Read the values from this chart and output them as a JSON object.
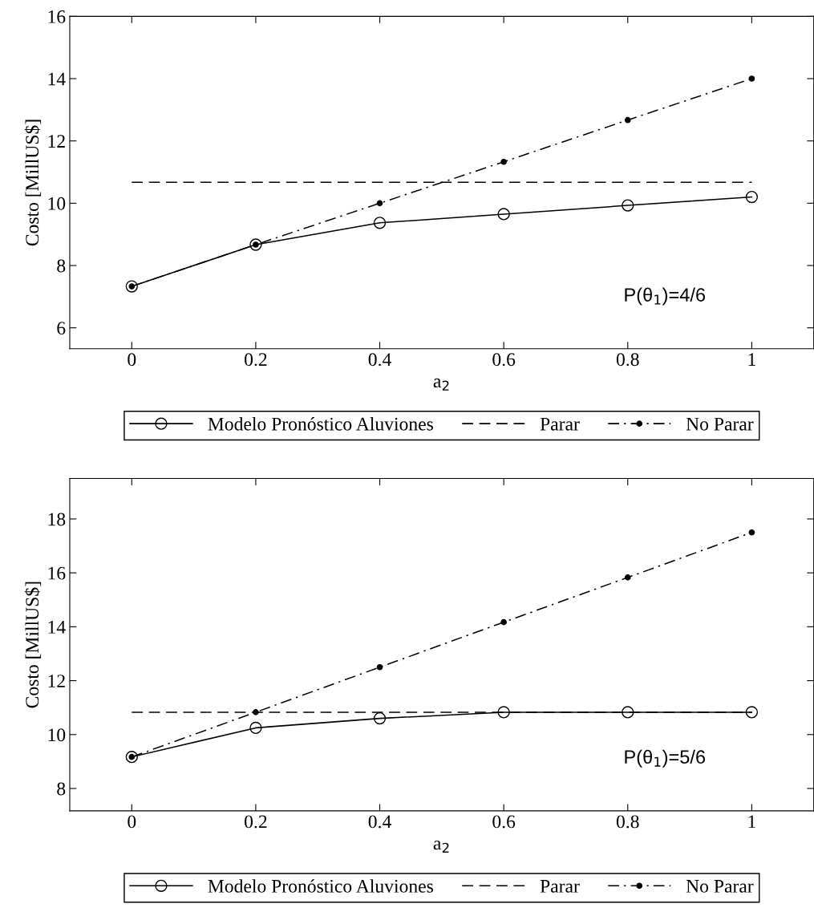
{
  "chart_data": [
    {
      "type": "line",
      "xlabel": "a$_{2}$",
      "ylabel": "Costo [MillUS$]",
      "x": [
        0,
        0.2,
        0.4,
        0.6,
        0.8,
        1
      ],
      "series": [
        {
          "name": "Modelo Pronóstico Aluviones",
          "color": "#000000",
          "marker": "circle",
          "line_style": "solid",
          "values": [
            7.33,
            8.67,
            9.37,
            9.65,
            9.93,
            10.2
          ]
        },
        {
          "name": "Parar",
          "color": "#000000",
          "marker": "none",
          "line_style": "dashed",
          "values": [
            10.67,
            10.67,
            10.67,
            10.67,
            10.67,
            10.67
          ]
        },
        {
          "name": "No Parar",
          "color": "#000000",
          "marker": "dot",
          "line_style": "dashdot",
          "values": [
            7.33,
            8.67,
            10.0,
            11.33,
            12.67,
            14.0
          ]
        }
      ],
      "xlim": [
        -0.1,
        1.1
      ],
      "xticks": [
        0,
        0.2,
        0.4,
        0.6,
        0.8,
        1
      ],
      "ylim": [
        5.33,
        16
      ],
      "yticks": [
        6,
        8,
        10,
        12,
        14,
        16
      ],
      "annotations": [
        "P(θ$_{1}$)=4/6"
      ],
      "legend": "bottom",
      "grid": false
    },
    {
      "type": "line",
      "xlabel": "a$_{2}$",
      "ylabel": "Costo [MillUS$]",
      "x": [
        0,
        0.2,
        0.4,
        0.6,
        0.8,
        1
      ],
      "series": [
        {
          "name": "Modelo Pronóstico Aluviones",
          "color": "#000000",
          "marker": "circle",
          "line_style": "solid",
          "values": [
            9.17,
            10.25,
            10.6,
            10.83,
            10.83,
            10.83
          ]
        },
        {
          "name": "Parar",
          "color": "#000000",
          "marker": "none",
          "line_style": "dashed",
          "values": [
            10.83,
            10.83,
            10.83,
            10.83,
            10.83,
            10.83
          ]
        },
        {
          "name": "No Parar",
          "color": "#000000",
          "marker": "dot",
          "line_style": "dashdot",
          "values": [
            9.17,
            10.83,
            12.5,
            14.17,
            15.83,
            17.5
          ]
        }
      ],
      "xlim": [
        -0.1,
        1.1
      ],
      "xticks": [
        0,
        0.2,
        0.4,
        0.6,
        0.8,
        1
      ],
      "ylim": [
        7.17,
        19.5
      ],
      "yticks": [
        8,
        10,
        12,
        14,
        16,
        18
      ],
      "annotations": [
        "P(θ$_{1}$)=5/6"
      ],
      "legend": "bottom",
      "grid": false
    }
  ]
}
